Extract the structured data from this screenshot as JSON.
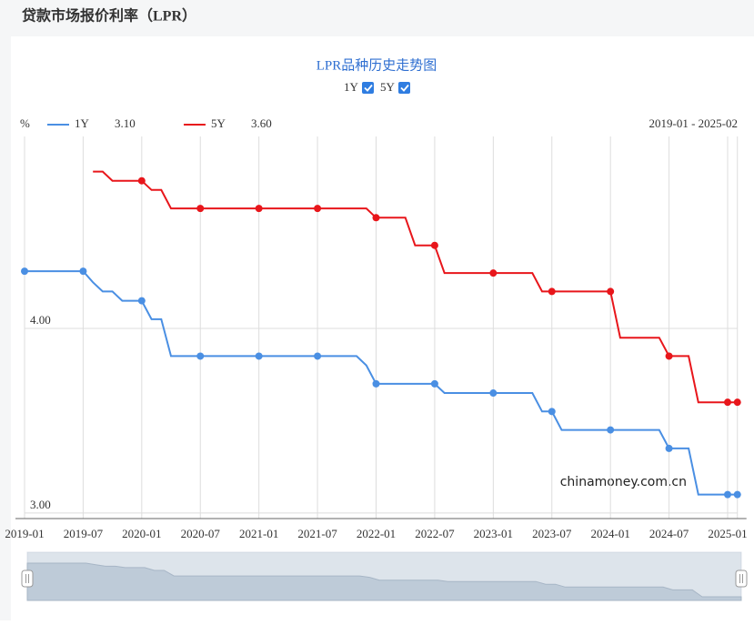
{
  "header": {
    "title": "贷款市场报价利率（LPR）"
  },
  "chart_data": {
    "type": "line",
    "title": "LPR品种历史走势图",
    "y_unit": "%",
    "range_label": "2019-01 - 2025-02",
    "watermark": "chinamoney.com.cn",
    "categories": [
      "2019-01",
      null,
      null,
      null,
      null,
      null,
      "2019-07",
      null,
      null,
      null,
      null,
      null,
      "2020-01",
      null,
      null,
      null,
      null,
      null,
      "2020-07",
      null,
      null,
      null,
      null,
      null,
      "2021-01",
      null,
      null,
      null,
      null,
      null,
      "2021-07",
      null,
      null,
      null,
      null,
      null,
      "2022-01",
      null,
      null,
      null,
      null,
      null,
      "2022-07",
      null,
      null,
      null,
      null,
      null,
      "2023-01",
      null,
      null,
      null,
      null,
      null,
      "2023-07",
      null,
      null,
      null,
      null,
      null,
      "2024-01",
      null,
      null,
      null,
      null,
      null,
      "2024-07",
      null,
      null,
      null,
      null,
      null,
      "2025-01",
      null
    ],
    "series": [
      {
        "name": "1Y",
        "last_label": "3.10",
        "color": "#4a8fe3",
        "values": [
          4.31,
          4.31,
          4.31,
          4.31,
          4.31,
          4.31,
          4.31,
          4.25,
          4.2,
          4.2,
          4.15,
          4.15,
          4.15,
          4.05,
          4.05,
          3.85,
          3.85,
          3.85,
          3.85,
          3.85,
          3.85,
          3.85,
          3.85,
          3.85,
          3.85,
          3.85,
          3.85,
          3.85,
          3.85,
          3.85,
          3.85,
          3.85,
          3.85,
          3.85,
          3.85,
          3.8,
          3.7,
          3.7,
          3.7,
          3.7,
          3.7,
          3.7,
          3.7,
          3.65,
          3.65,
          3.65,
          3.65,
          3.65,
          3.65,
          3.65,
          3.65,
          3.65,
          3.65,
          3.55,
          3.55,
          3.45,
          3.45,
          3.45,
          3.45,
          3.45,
          3.45,
          3.45,
          3.45,
          3.45,
          3.45,
          3.45,
          3.35,
          3.35,
          3.35,
          3.1,
          3.1,
          3.1,
          3.1,
          3.1
        ]
      },
      {
        "name": "5Y",
        "last_label": "3.60",
        "color": "#e8161b",
        "values": [
          null,
          null,
          null,
          null,
          null,
          null,
          null,
          4.85,
          4.85,
          4.8,
          4.8,
          4.8,
          4.8,
          4.75,
          4.75,
          4.65,
          4.65,
          4.65,
          4.65,
          4.65,
          4.65,
          4.65,
          4.65,
          4.65,
          4.65,
          4.65,
          4.65,
          4.65,
          4.65,
          4.65,
          4.65,
          4.65,
          4.65,
          4.65,
          4.65,
          4.65,
          4.6,
          4.6,
          4.6,
          4.6,
          4.45,
          4.45,
          4.45,
          4.3,
          4.3,
          4.3,
          4.3,
          4.3,
          4.3,
          4.3,
          4.3,
          4.3,
          4.3,
          4.2,
          4.2,
          4.2,
          4.2,
          4.2,
          4.2,
          4.2,
          4.2,
          3.95,
          3.95,
          3.95,
          3.95,
          3.95,
          3.85,
          3.85,
          3.85,
          3.6,
          3.6,
          3.6,
          3.6,
          3.6
        ]
      }
    ],
    "ylim": [
      2.97,
      5.04
    ],
    "yticks": [
      {
        "value": 3,
        "label": "3.00"
      },
      {
        "value": 4,
        "label": "4.00"
      }
    ],
    "grid": true
  }
}
